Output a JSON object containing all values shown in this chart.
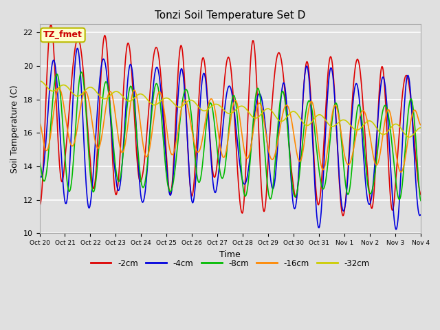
{
  "title": "Tonzi Soil Temperature Set D",
  "xlabel": "Time",
  "ylabel": "Soil Temperature (C)",
  "ylim": [
    10,
    22.5
  ],
  "background_color": "#e0e0e0",
  "annotation_text": "TZ_fmet",
  "annotation_color": "#cc0000",
  "annotation_bg": "#ffffcc",
  "annotation_border": "#bbbb00",
  "tick_labels": [
    "Oct 20",
    "Oct 21",
    "Oct 22",
    "Oct 23",
    "Oct 24",
    "Oct 25",
    "Oct 26",
    "Oct 27",
    "Oct 28",
    "Oct 29",
    "Oct 30",
    "Oct 31",
    "Nov 1",
    "Nov 2",
    "Nov 3",
    "Nov 4"
  ],
  "series": {
    "neg2cm": {
      "label": "-2cm",
      "color": "#dd0000",
      "lw": 1.2
    },
    "neg4cm": {
      "label": "-4cm",
      "color": "#0000dd",
      "lw": 1.2
    },
    "neg8cm": {
      "label": "-8cm",
      "color": "#00bb00",
      "lw": 1.2
    },
    "neg16cm": {
      "label": "-16cm",
      "color": "#ff8800",
      "lw": 1.2
    },
    "neg32cm": {
      "label": "-32cm",
      "color": "#cccc00",
      "lw": 1.2
    }
  },
  "legend_colors": [
    "#dd0000",
    "#0000dd",
    "#00bb00",
    "#ff8800",
    "#cccc00"
  ],
  "legend_labels": [
    "-2cm",
    "-4cm",
    "-8cm",
    "-16cm",
    "-32cm"
  ]
}
